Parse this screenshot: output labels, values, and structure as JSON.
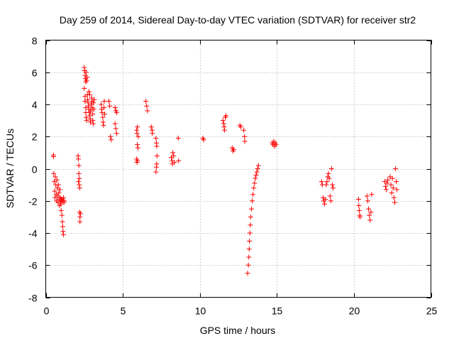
{
  "chart_data": {
    "type": "scatter",
    "title": "Day 259 of 2014, Sidereal Day-to-day VTEC variation (SDTVAR) for receiver str2",
    "xlabel": "GPS time / hours",
    "ylabel": "SDTVAR / TECUs",
    "xlim": [
      0,
      25
    ],
    "ylim": [
      -8,
      8
    ],
    "xticks": [
      0,
      5,
      10,
      15,
      20,
      25
    ],
    "yticks": [
      -8,
      -6,
      -4,
      -2,
      0,
      2,
      4,
      6,
      8
    ],
    "xtick_labels": [
      "0",
      "5",
      "10",
      "15",
      "20",
      "25"
    ],
    "ytick_labels": [
      "-8",
      "-6",
      "-4",
      "-2",
      "0",
      "2",
      "4",
      "6",
      "8"
    ],
    "grid": true,
    "marker": "+",
    "color": "#ff0000",
    "series": [
      {
        "name": "SDTVAR",
        "points": [
          [
            0.5,
            0.85
          ],
          [
            0.5,
            0.75
          ],
          [
            0.52,
            -0.3
          ],
          [
            0.55,
            -0.8
          ],
          [
            0.58,
            -1.4
          ],
          [
            0.6,
            -1.8
          ],
          [
            0.62,
            -0.5
          ],
          [
            0.65,
            -1.0
          ],
          [
            0.68,
            -1.6
          ],
          [
            0.7,
            -2.0
          ],
          [
            0.72,
            -0.7
          ],
          [
            0.75,
            -1.2
          ],
          [
            0.78,
            -1.7
          ],
          [
            0.8,
            -2.1
          ],
          [
            0.82,
            -1.0
          ],
          [
            0.85,
            -1.5
          ],
          [
            0.88,
            -1.9
          ],
          [
            0.9,
            -2.3
          ],
          [
            0.92,
            -1.3
          ],
          [
            0.95,
            -1.8
          ],
          [
            0.98,
            -2.2
          ],
          [
            1.0,
            -2.6
          ],
          [
            1.02,
            -2.0
          ],
          [
            1.05,
            -2.9
          ],
          [
            1.08,
            -3.3
          ],
          [
            1.1,
            -3.6
          ],
          [
            1.12,
            -3.9
          ],
          [
            1.15,
            -4.1
          ],
          [
            1.05,
            -1.9
          ],
          [
            1.1,
            -2.0
          ],
          [
            1.15,
            -1.8
          ],
          [
            1.18,
            -2.1
          ],
          [
            1.2,
            -2.0
          ],
          [
            0.95,
            -2.0
          ],
          [
            1.0,
            -1.9
          ],
          [
            2.1,
            0.8
          ],
          [
            2.12,
            0.6
          ],
          [
            2.15,
            0.2
          ],
          [
            2.15,
            -0.3
          ],
          [
            2.18,
            -0.6
          ],
          [
            2.18,
            -1.0
          ],
          [
            2.2,
            -1.2
          ],
          [
            2.12,
            -0.8
          ],
          [
            2.2,
            -2.7
          ],
          [
            2.22,
            -3.0
          ],
          [
            2.22,
            -3.3
          ],
          [
            2.25,
            -2.8
          ],
          [
            2.5,
            6.3
          ],
          [
            2.52,
            6.1
          ],
          [
            2.55,
            5.8
          ],
          [
            2.58,
            5.6
          ],
          [
            2.6,
            5.4
          ],
          [
            2.62,
            6.0
          ],
          [
            2.65,
            5.5
          ],
          [
            2.68,
            5.7
          ],
          [
            2.5,
            5.0
          ],
          [
            2.55,
            4.5
          ],
          [
            2.55,
            4.2
          ],
          [
            2.6,
            3.8
          ],
          [
            2.6,
            3.5
          ],
          [
            2.62,
            3.2
          ],
          [
            2.65,
            3.0
          ],
          [
            2.7,
            4.6
          ],
          [
            2.72,
            4.3
          ],
          [
            2.75,
            4.1
          ],
          [
            2.78,
            3.9
          ],
          [
            2.8,
            3.7
          ],
          [
            2.82,
            3.5
          ],
          [
            2.85,
            3.3
          ],
          [
            2.88,
            3.1
          ],
          [
            2.9,
            2.9
          ],
          [
            2.92,
            3.6
          ],
          [
            2.95,
            4.0
          ],
          [
            2.98,
            4.4
          ],
          [
            3.0,
            4.2
          ],
          [
            3.02,
            3.8
          ],
          [
            3.05,
            3.4
          ],
          [
            3.05,
            3.0
          ],
          [
            3.08,
            2.8
          ],
          [
            3.1,
            4.1
          ],
          [
            3.12,
            3.7
          ],
          [
            3.15,
            4.3
          ],
          [
            2.8,
            4.8
          ],
          [
            2.85,
            4.6
          ],
          [
            2.9,
            3.6
          ],
          [
            3.6,
            4.0
          ],
          [
            3.62,
            3.7
          ],
          [
            3.65,
            3.5
          ],
          [
            3.7,
            3.2
          ],
          [
            3.72,
            2.9
          ],
          [
            3.75,
            2.7
          ],
          [
            3.78,
            3.8
          ],
          [
            3.8,
            4.2
          ],
          [
            3.82,
            3.4
          ],
          [
            4.1,
            4.2
          ],
          [
            4.15,
            3.9
          ],
          [
            4.2,
            2.0
          ],
          [
            4.25,
            1.8
          ],
          [
            4.5,
            3.8
          ],
          [
            4.55,
            3.6
          ],
          [
            4.6,
            3.5
          ],
          [
            4.5,
            2.8
          ],
          [
            4.55,
            2.5
          ],
          [
            4.6,
            2.2
          ],
          [
            5.9,
            2.4
          ],
          [
            5.92,
            2.2
          ],
          [
            5.95,
            2.6
          ],
          [
            5.95,
            1.5
          ],
          [
            5.98,
            1.3
          ],
          [
            5.9,
            0.6
          ],
          [
            5.92,
            0.4
          ],
          [
            5.95,
            0.5
          ],
          [
            6.0,
            2.0
          ],
          [
            6.5,
            4.2
          ],
          [
            6.55,
            3.9
          ],
          [
            6.6,
            3.6
          ],
          [
            6.85,
            2.6
          ],
          [
            6.9,
            2.4
          ],
          [
            6.92,
            2.2
          ],
          [
            7.15,
            1.9
          ],
          [
            7.18,
            1.6
          ],
          [
            7.2,
            1.4
          ],
          [
            7.22,
            0.8
          ],
          [
            7.2,
            0.3
          ],
          [
            7.18,
            0.1
          ],
          [
            7.15,
            -0.2
          ],
          [
            8.15,
            0.7
          ],
          [
            8.2,
            0.5
          ],
          [
            8.22,
            0.3
          ],
          [
            8.25,
            1.0
          ],
          [
            8.3,
            0.8
          ],
          [
            8.35,
            0.4
          ],
          [
            8.6,
            1.9
          ],
          [
            8.62,
            0.5
          ],
          [
            10.2,
            1.9
          ],
          [
            10.25,
            1.8
          ],
          [
            11.5,
            3.0
          ],
          [
            11.55,
            2.8
          ],
          [
            11.58,
            2.6
          ],
          [
            11.6,
            2.4
          ],
          [
            11.65,
            3.2
          ],
          [
            11.7,
            3.3
          ],
          [
            12.1,
            1.3
          ],
          [
            12.15,
            1.1
          ],
          [
            12.2,
            1.2
          ],
          [
            12.6,
            2.7
          ],
          [
            12.65,
            2.6
          ],
          [
            12.85,
            2.4
          ],
          [
            12.9,
            2.0
          ],
          [
            12.92,
            1.7
          ],
          [
            13.1,
            -6.5
          ],
          [
            13.15,
            -6.0
          ],
          [
            13.18,
            -5.5
          ],
          [
            13.2,
            -5.0
          ],
          [
            13.22,
            -4.5
          ],
          [
            13.25,
            -4.0
          ],
          [
            13.28,
            -3.5
          ],
          [
            13.3,
            -3.0
          ],
          [
            13.35,
            -2.5
          ],
          [
            13.4,
            -2.0
          ],
          [
            13.45,
            -1.6
          ],
          [
            13.5,
            -1.2
          ],
          [
            13.55,
            -0.9
          ],
          [
            13.6,
            -0.6
          ],
          [
            13.65,
            -0.4
          ],
          [
            13.7,
            -0.2
          ],
          [
            13.75,
            0.0
          ],
          [
            13.8,
            0.2
          ],
          [
            14.7,
            1.6
          ],
          [
            14.75,
            1.5
          ],
          [
            14.8,
            1.7
          ],
          [
            14.85,
            1.4
          ],
          [
            14.9,
            1.6
          ],
          [
            14.95,
            1.5
          ],
          [
            17.9,
            -0.8
          ],
          [
            17.95,
            -1.0
          ],
          [
            18.0,
            -1.8
          ],
          [
            18.05,
            -2.0
          ],
          [
            18.1,
            -2.2
          ],
          [
            18.15,
            -1.9
          ],
          [
            18.2,
            -1.0
          ],
          [
            18.25,
            -0.8
          ],
          [
            18.3,
            -0.5
          ],
          [
            18.35,
            -0.3
          ],
          [
            18.4,
            -0.6
          ],
          [
            18.45,
            -1.7
          ],
          [
            18.5,
            -2.0
          ],
          [
            18.55,
            0.0
          ],
          [
            18.6,
            -1.0
          ],
          [
            18.65,
            -1.2
          ],
          [
            20.3,
            -1.9
          ],
          [
            20.32,
            -2.3
          ],
          [
            20.35,
            -2.6
          ],
          [
            20.38,
            -2.9
          ],
          [
            20.4,
            -3.0
          ],
          [
            20.85,
            -1.7
          ],
          [
            20.9,
            -2.0
          ],
          [
            20.95,
            -2.5
          ],
          [
            21.0,
            -2.9
          ],
          [
            21.05,
            -3.2
          ],
          [
            21.1,
            -2.7
          ],
          [
            21.15,
            -1.6
          ],
          [
            22.0,
            -0.8
          ],
          [
            22.05,
            -1.1
          ],
          [
            22.1,
            -1.3
          ],
          [
            22.15,
            -0.9
          ],
          [
            22.2,
            -0.7
          ],
          [
            22.35,
            -0.5
          ],
          [
            22.4,
            -1.0
          ],
          [
            22.45,
            -1.5
          ],
          [
            22.5,
            -0.6
          ],
          [
            22.55,
            -1.2
          ],
          [
            22.6,
            -1.8
          ],
          [
            22.65,
            -2.1
          ],
          [
            22.7,
            0.0
          ],
          [
            22.75,
            -0.8
          ],
          [
            22.78,
            -1.3
          ]
        ]
      }
    ]
  }
}
